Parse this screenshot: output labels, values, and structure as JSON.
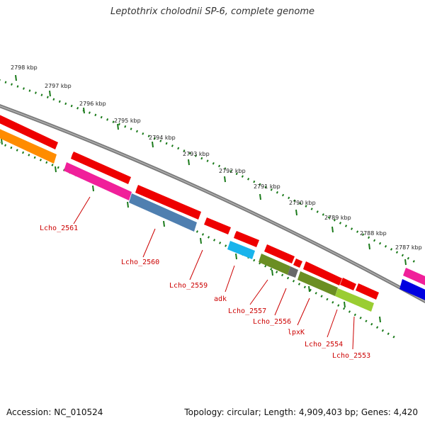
{
  "title": "Leptothrix cholodnii SP-6, complete genome",
  "footer": {
    "accession": "Accession: NC_010524",
    "summary": "Topology: circular; Length: 4,909,403 bp; Genes: 4,420"
  },
  "ruler": [
    "2798 kbp",
    "2797 kbp",
    "2796 kbp",
    "2795 kbp",
    "2794 kbp",
    "2793 kbp",
    "2792 kbp",
    "2791 kbp",
    "2790 kbp",
    "2789 kbp",
    "2788 kbp",
    "2787 kbp"
  ],
  "gene_labels": [
    "Lcho_2561",
    "Lcho_2560",
    "Lcho_2559",
    "adk",
    "Lcho_2557",
    "Lcho_2556",
    "lpxK",
    "Lcho_2554",
    "Lcho_2553"
  ],
  "colors": {
    "backbone": "#808080",
    "tick": "#1a7a1a",
    "cds": "#ee0000",
    "label": "#cc0000",
    "orange": "#ff8c00",
    "pink": "#f0209a",
    "steelblue": "#4f7fb0",
    "cyan": "#19b4ec",
    "olive": "#6b8e23",
    "gray": "#696969",
    "lime": "#9acd32",
    "blue": "#0000e0"
  }
}
